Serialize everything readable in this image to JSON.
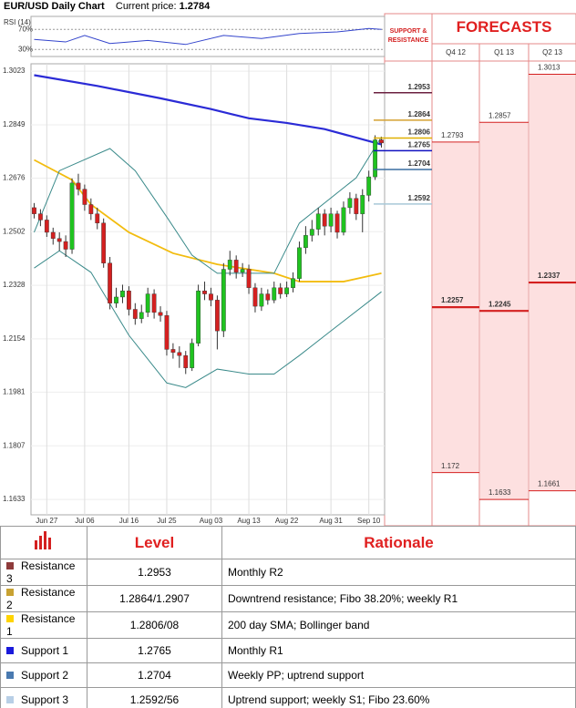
{
  "header": {
    "title": "EUR/USD Daily Chart",
    "price_label": "Current price:",
    "price": 1.2784
  },
  "chart_data": [
    {
      "type": "candlestick",
      "categories": [
        null,
        null,
        "Jun 27",
        null,
        null,
        null,
        null,
        null,
        "Jul 06",
        null,
        null,
        null,
        null,
        null,
        null,
        "Jul 16",
        null,
        null,
        null,
        null,
        null,
        "Jul 25",
        null,
        null,
        null,
        null,
        null,
        null,
        "Aug 03",
        null,
        null,
        null,
        null,
        null,
        "Aug 13",
        null,
        null,
        null,
        null,
        null,
        "Aug 22",
        null,
        null,
        null,
        null,
        null,
        null,
        "Aug 31",
        null,
        null,
        null,
        null,
        null,
        "Sep 10",
        null,
        null
      ],
      "open": [
        1.258,
        1.256,
        1.254,
        1.25,
        1.248,
        1.247,
        1.2445,
        1.266,
        1.264,
        1.259,
        1.256,
        1.253,
        1.24,
        1.227,
        1.229,
        1.231,
        1.225,
        1.222,
        1.224,
        1.23,
        1.224,
        1.223,
        1.212,
        1.211,
        1.21,
        1.206,
        1.214,
        1.231,
        1.23,
        1.228,
        1.218,
        1.238,
        1.241,
        1.237,
        1.238,
        1.232,
        1.226,
        1.23,
        1.228,
        1.232,
        1.23,
        1.232,
        1.235,
        1.245,
        1.249,
        1.251,
        1.256,
        1.252,
        1.256,
        1.25,
        1.258,
        1.261,
        1.256,
        1.262,
        1.268,
        1.28
      ],
      "high": [
        1.2595,
        1.2575,
        1.2555,
        1.2515,
        1.25,
        1.249,
        1.2675,
        1.269,
        1.2655,
        1.261,
        1.258,
        1.2545,
        1.242,
        1.232,
        1.233,
        1.2325,
        1.227,
        1.2265,
        1.232,
        1.2315,
        1.226,
        1.2245,
        1.214,
        1.213,
        1.2115,
        1.2155,
        1.233,
        1.234,
        1.232,
        1.2295,
        1.24,
        1.244,
        1.2425,
        1.24,
        1.2395,
        1.2335,
        1.232,
        1.2315,
        1.234,
        1.2335,
        1.234,
        1.237,
        1.247,
        1.252,
        1.254,
        1.258,
        1.2575,
        1.258,
        1.257,
        1.26,
        1.263,
        1.2625,
        1.264,
        1.27,
        1.2815,
        1.281
      ],
      "low": [
        1.2545,
        1.252,
        1.2485,
        1.246,
        1.244,
        1.242,
        1.243,
        1.262,
        1.257,
        1.254,
        1.251,
        1.2385,
        1.225,
        1.2255,
        1.227,
        1.223,
        1.22,
        1.2205,
        1.2225,
        1.222,
        1.221,
        1.21,
        1.209,
        1.206,
        1.204,
        1.205,
        1.213,
        1.228,
        1.226,
        1.212,
        1.216,
        1.236,
        1.235,
        1.2355,
        1.23,
        1.224,
        1.2245,
        1.2265,
        1.227,
        1.2285,
        1.229,
        1.2305,
        1.234,
        1.243,
        1.247,
        1.249,
        1.249,
        1.25,
        1.248,
        1.249,
        1.256,
        1.254,
        1.25,
        1.26,
        1.267,
        1.2775
      ],
      "close": [
        1.256,
        1.254,
        1.25,
        1.248,
        1.247,
        1.2445,
        1.266,
        1.264,
        1.259,
        1.256,
        1.253,
        1.24,
        1.227,
        1.229,
        1.231,
        1.225,
        1.222,
        1.224,
        1.23,
        1.224,
        1.223,
        1.212,
        1.211,
        1.21,
        1.206,
        1.214,
        1.231,
        1.23,
        1.228,
        1.218,
        1.238,
        1.241,
        1.237,
        1.238,
        1.232,
        1.226,
        1.23,
        1.228,
        1.232,
        1.23,
        1.232,
        1.235,
        1.245,
        1.249,
        1.251,
        1.256,
        1.252,
        1.256,
        1.25,
        1.258,
        1.261,
        1.256,
        1.262,
        1.268,
        1.28,
        1.279
      ],
      "up_color": "#1fc31f",
      "down_color": "#d42020",
      "ylim": [
        1.1583,
        1.3047
      ],
      "yticks": [
        1.1633,
        1.1807,
        1.1981,
        1.2154,
        1.2328,
        1.2502,
        1.2676,
        1.2849,
        1.3023
      ],
      "grid": true,
      "lines": [
        {
          "color": "#2b2bd6",
          "x": [
            0,
            10,
            20,
            28,
            34,
            40,
            46,
            55
          ],
          "values": [
            1.301,
            1.2975,
            1.2935,
            1.29,
            1.287,
            1.2855,
            1.2835,
            1.2785
          ]
        },
        {
          "color": "#f2bc0f",
          "x": [
            0,
            6,
            9,
            15,
            22,
            29,
            38,
            42,
            49,
            55
          ],
          "values": [
            1.2735,
            1.267,
            1.259,
            1.25,
            1.2432,
            1.2396,
            1.2367,
            1.234,
            1.234,
            1.2367
          ]
        },
        {
          "color": "#3a8a8a",
          "x": [
            0,
            4,
            12,
            16,
            21,
            25,
            29,
            38,
            42,
            51,
            55
          ],
          "values": [
            1.25,
            1.27,
            1.2772,
            1.27,
            1.255,
            1.2426,
            1.2367,
            1.2367,
            1.253,
            1.2677,
            1.281
          ]
        },
        {
          "color": "#3a8a8a",
          "x": [
            0,
            4,
            9,
            15,
            21,
            24,
            29,
            34,
            38,
            42,
            47,
            55
          ],
          "values": [
            1.2384,
            1.244,
            1.237,
            1.2166,
            1.2011,
            1.1996,
            1.2056,
            1.204,
            1.204,
            1.21,
            1.218,
            1.2307
          ]
        }
      ]
    },
    {
      "type": "line",
      "title": "RSI (14)",
      "color": "#3344cc",
      "x": [
        0,
        5,
        8,
        12,
        18,
        24,
        30,
        36,
        42,
        48,
        53,
        55
      ],
      "values": [
        50,
        45,
        58,
        42,
        48,
        40,
        58,
        52,
        62,
        65,
        72,
        70
      ],
      "ylim": [
        16,
        96
      ],
      "yticks": [
        {
          "value": 30,
          "label": "30%"
        },
        {
          "value": 70,
          "label": "70%"
        }
      ]
    },
    {
      "type": "levels",
      "title": "SUPPORT & RESISTANCE",
      "values": [
        1.2953,
        1.2864,
        1.2806,
        1.2765,
        1.2704,
        1.2592
      ],
      "colors": [
        "#6b2040",
        "#d4a030",
        "#e0b000",
        "#1010c0",
        "#3a6ea0",
        "#a8c8d8"
      ],
      "ylim": [
        1.1583,
        1.3047
      ]
    },
    {
      "type": "range",
      "title": "FORECASTS",
      "categories": [
        "Q4 12",
        "Q1 13",
        "Q2 13"
      ],
      "high": [
        1.2793,
        1.2857,
        1.3013
      ],
      "mid": [
        1.2257,
        1.2245,
        1.2337
      ],
      "low": [
        1.172,
        1.1633,
        1.1661
      ],
      "color": "#d42020",
      "ylim": [
        1.1583,
        1.3047
      ]
    }
  ],
  "table": {
    "columns": [
      "Level",
      "Rationale"
    ],
    "rows": [
      {
        "name": "Resistance 3",
        "color": "#8e3b3b",
        "level": "1.2953",
        "rationale": "Monthly R2"
      },
      {
        "name": "Resistance 2",
        "color": "#c8a232",
        "level": "1.2864/1.2907",
        "rationale": "Downtrend resistance; Fibo 38.20%; weekly R1"
      },
      {
        "name": "Resistance 1",
        "color": "#ffd400",
        "level": "1.2806/08",
        "rationale": "200 day SMA; Bollinger band"
      },
      {
        "name": "Support 1",
        "color": "#1a1adb",
        "level": "1.2765",
        "rationale": "Monthly R1"
      },
      {
        "name": "Support 2",
        "color": "#4a7ab0",
        "level": "1.2704",
        "rationale": "Weekly PP; uptrend support"
      },
      {
        "name": "Support 3",
        "color": "#b8cfe6",
        "level": "1.2592/56",
        "rationale": "Uptrend support; weekly S1; Fibo 23.60%"
      }
    ]
  }
}
